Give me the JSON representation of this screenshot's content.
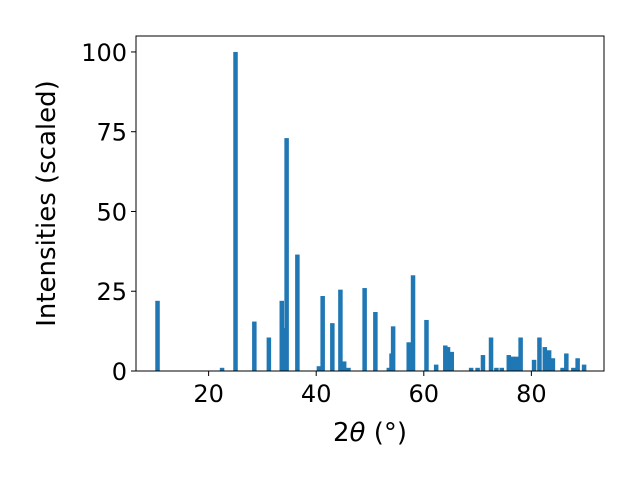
{
  "chart_data": {
    "type": "bar",
    "xlabel_prefix": "2",
    "xlabel_theta": "θ",
    "xlabel_suffix": " (°)",
    "ylabel": "Intensities (scaled)",
    "xlim": [
      6.5,
      93.5
    ],
    "ylim": [
      0,
      105
    ],
    "xticks": [
      20,
      40,
      60,
      80
    ],
    "yticks": [
      0,
      25,
      50,
      75,
      100
    ],
    "bar_color": "#1f77b4",
    "x": [
      10.5,
      22.5,
      25.0,
      28.5,
      31.2,
      33.6,
      34.0,
      34.5,
      36.5,
      40.5,
      41.2,
      43.0,
      44.5,
      45.2,
      46.0,
      49.0,
      51.0,
      53.5,
      54.0,
      54.3,
      57.2,
      58.0,
      60.5,
      62.3,
      64.0,
      64.5,
      65.2,
      68.8,
      70.0,
      71.0,
      72.5,
      73.5,
      74.5,
      75.8,
      76.5,
      77.2,
      78.0,
      80.5,
      81.5,
      82.5,
      83.3,
      84.0,
      85.8,
      86.5,
      87.8,
      88.6,
      89.8
    ],
    "values": [
      22,
      1,
      100,
      15.5,
      10.5,
      22,
      13.5,
      73,
      36.5,
      1.5,
      23.5,
      15,
      25.5,
      3,
      1,
      26,
      18.5,
      1,
      5.5,
      14,
      9,
      30,
      16,
      2,
      8,
      7.5,
      6,
      1,
      1,
      5,
      10.5,
      1,
      1,
      5,
      4.5,
      4.5,
      10.5,
      3.5,
      10.5,
      7.5,
      6.5,
      4,
      1,
      5.5,
      1,
      4,
      2
    ]
  }
}
